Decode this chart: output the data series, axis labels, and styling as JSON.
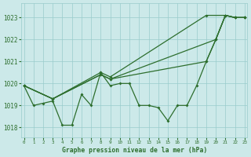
{
  "title": "Graphe pression niveau de la mer (hPa)",
  "bg_color": "#cce9e9",
  "grid_color": "#99cccc",
  "line_color": "#2d6e2d",
  "xlim": [
    -0.3,
    23.3
  ],
  "ylim": [
    1017.55,
    1023.65
  ],
  "yticks": [
    1018,
    1019,
    1020,
    1021,
    1022,
    1023
  ],
  "xticks": [
    0,
    1,
    2,
    3,
    4,
    5,
    6,
    7,
    8,
    9,
    10,
    11,
    12,
    13,
    14,
    15,
    16,
    17,
    18,
    19,
    20,
    21,
    22,
    23
  ],
  "zigzag": {
    "x": [
      0,
      1,
      2,
      3,
      4,
      5,
      6,
      7,
      8,
      9,
      10,
      11,
      12,
      13,
      14,
      15,
      16,
      17,
      18,
      19,
      20,
      21,
      22,
      23
    ],
    "y": [
      1019.9,
      1019.0,
      1019.1,
      1019.2,
      1018.1,
      1018.1,
      1019.5,
      1019.0,
      1020.5,
      1019.9,
      1020.0,
      1020.0,
      1019.0,
      1019.0,
      1018.9,
      1018.3,
      1019.0,
      1019.0,
      1019.9,
      1021.0,
      1022.0,
      1023.1,
      1023.0,
      1023.0
    ]
  },
  "trend_lines": [
    {
      "x": [
        0,
        3,
        8,
        9,
        19,
        21,
        22,
        23
      ],
      "y": [
        1019.9,
        1019.3,
        1020.5,
        1020.3,
        1023.1,
        1023.1,
        1023.0,
        1023.0
      ]
    },
    {
      "x": [
        0,
        3,
        8,
        9,
        20,
        21,
        22,
        23
      ],
      "y": [
        1019.9,
        1019.3,
        1020.4,
        1020.2,
        1022.0,
        1023.1,
        1023.0,
        1023.0
      ]
    },
    {
      "x": [
        0,
        3,
        8,
        9,
        19,
        20,
        21,
        22,
        23
      ],
      "y": [
        1019.9,
        1019.3,
        1020.4,
        1020.2,
        1021.0,
        1022.0,
        1023.1,
        1023.0,
        1023.0
      ]
    }
  ]
}
